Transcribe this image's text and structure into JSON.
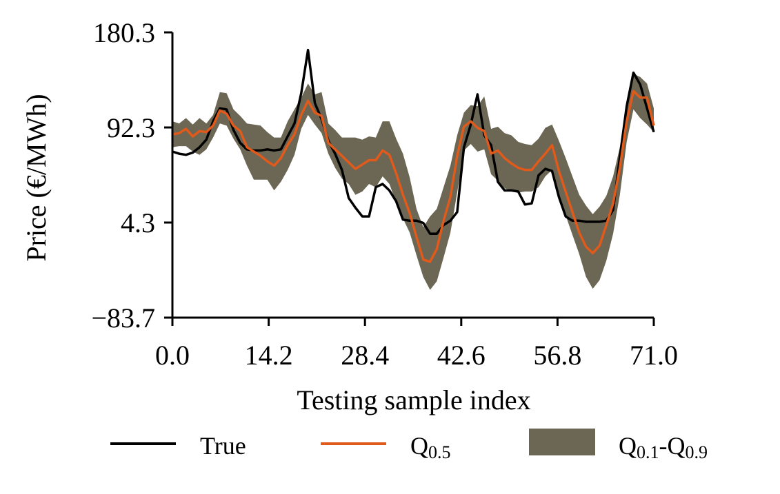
{
  "chart_data": {
    "type": "line",
    "xlabel": "Testing sample index",
    "ylabel": "Price (€/MWh)",
    "xlim": [
      0,
      71
    ],
    "ylim": [
      -83.7,
      180.3
    ],
    "xticks": [
      0,
      14.2,
      28.4,
      42.6,
      56.8,
      71
    ],
    "xtick_labels": [
      "0.0",
      "14.2",
      "28.4",
      "42.6",
      "56.8",
      "71.0"
    ],
    "yticks": [
      -83.7,
      4.3,
      92.3,
      180.3
    ],
    "ytick_labels": [
      "−83.7",
      "4.3",
      "92.3",
      "180.3"
    ],
    "legend": {
      "placement": "bottom-center",
      "true_label": "True",
      "median_label": "Q",
      "median_sub": "0.5",
      "band_label_a": "Q",
      "band_sub_a": "0.1",
      "band_dash": "-",
      "band_label_b": "Q",
      "band_sub_b": "0.9"
    },
    "colors": {
      "true": "#000000",
      "median": "#e05a1b",
      "band": "#6b6754"
    },
    "series": [
      {
        "name": "True",
        "x": [
          0,
          1,
          2,
          3,
          4,
          5,
          6,
          7,
          8,
          9,
          10,
          11,
          12,
          13,
          14,
          15,
          16,
          17,
          18,
          19,
          20,
          21,
          22,
          23,
          24,
          25,
          26,
          27,
          28,
          29,
          30,
          31,
          32,
          33,
          34,
          35,
          36,
          37,
          38,
          39,
          40,
          41,
          42,
          43,
          44,
          45,
          46,
          47,
          48,
          49,
          50,
          51,
          52,
          53,
          54,
          55,
          56,
          57,
          58,
          59,
          60,
          61,
          62,
          63,
          64,
          65,
          66,
          67,
          68,
          69,
          70,
          71
        ],
        "values": [
          70,
          68,
          67,
          69,
          74,
          81,
          98,
          110,
          109,
          90,
          78,
          72,
          71,
          71,
          72,
          71,
          72,
          84,
          96,
          124,
          164,
          115,
          100,
          80,
          68,
          53,
          27,
          18,
          10,
          10,
          37,
          40,
          34,
          24,
          7,
          6,
          6,
          4,
          -6,
          -6,
          2,
          6,
          14,
          74,
          95,
          123,
          85,
          76,
          42,
          34,
          34,
          33,
          21,
          22,
          48,
          54,
          52,
          28,
          10,
          6,
          6,
          5,
          5,
          5,
          6,
          16,
          65,
          112,
          143,
          132,
          110,
          88
        ]
      },
      {
        "name": "Q0.5",
        "x": [
          0,
          1,
          2,
          3,
          4,
          5,
          6,
          7,
          8,
          9,
          10,
          11,
          12,
          13,
          14,
          15,
          16,
          17,
          18,
          19,
          20,
          21,
          22,
          23,
          24,
          25,
          26,
          27,
          28,
          29,
          30,
          31,
          32,
          33,
          34,
          35,
          36,
          37,
          38,
          39,
          40,
          41,
          42,
          43,
          44,
          45,
          46,
          47,
          48,
          49,
          50,
          51,
          52,
          53,
          54,
          55,
          56,
          57,
          58,
          59,
          60,
          61,
          62,
          63,
          64,
          65,
          66,
          67,
          68,
          69,
          70,
          71
        ],
        "values": [
          86,
          87,
          91,
          84,
          89,
          88,
          94,
          108,
          105,
          94,
          89,
          74,
          70,
          66,
          61,
          57,
          64,
          76,
          86,
          104,
          117,
          106,
          103,
          78,
          72,
          66,
          60,
          54,
          58,
          62,
          62,
          71,
          67,
          50,
          30,
          13,
          -9,
          -30,
          -32,
          -20,
          6,
          28,
          66,
          93,
          98,
          92,
          89,
          68,
          71,
          64,
          59,
          55,
          53,
          53,
          61,
          68,
          76,
          52,
          33,
          14,
          -5,
          -18,
          -24,
          -17,
          2,
          22,
          55,
          98,
          126,
          120,
          120,
          94
        ]
      }
    ],
    "band": {
      "name": "Q0.1-Q0.9",
      "x": [
        0,
        1,
        2,
        3,
        4,
        5,
        6,
        7,
        8,
        9,
        10,
        11,
        12,
        13,
        14,
        15,
        16,
        17,
        18,
        19,
        20,
        21,
        22,
        23,
        24,
        25,
        26,
        27,
        28,
        29,
        30,
        31,
        32,
        33,
        34,
        35,
        36,
        37,
        38,
        39,
        40,
        41,
        42,
        43,
        44,
        45,
        46,
        47,
        48,
        49,
        50,
        51,
        52,
        53,
        54,
        55,
        56,
        57,
        58,
        59,
        60,
        61,
        62,
        63,
        64,
        65,
        66,
        67,
        68,
        69,
        70,
        71
      ],
      "lower": [
        74,
        75,
        75,
        70,
        67,
        72,
        83,
        96,
        94,
        82,
        72,
        57,
        44,
        44,
        44,
        34,
        42,
        53,
        67,
        91,
        104,
        95,
        87,
        68,
        55,
        45,
        40,
        30,
        33,
        40,
        37,
        47,
        40,
        23,
        8,
        -5,
        -26,
        -46,
        -58,
        -50,
        -28,
        -5,
        32,
        71,
        77,
        70,
        72,
        49,
        43,
        36,
        34,
        32,
        33,
        33,
        37,
        47,
        53,
        30,
        11,
        -7,
        -25,
        -46,
        -57,
        -49,
        -31,
        -6,
        30,
        79,
        109,
        101,
        95,
        88
      ],
      "upper": [
        98,
        96,
        101,
        95,
        101,
        96,
        104,
        125,
        124,
        109,
        103,
        96,
        95,
        94,
        88,
        83,
        83,
        98,
        109,
        120,
        133,
        123,
        125,
        96,
        90,
        83,
        83,
        83,
        81,
        84,
        83,
        98,
        98,
        82,
        68,
        46,
        17,
        0,
        10,
        17,
        37,
        57,
        85,
        106,
        113,
        112,
        121,
        91,
        93,
        87,
        85,
        79,
        77,
        76,
        82,
        92,
        95,
        80,
        64,
        47,
        30,
        20,
        12,
        19,
        29,
        47,
        74,
        111,
        142,
        139,
        133,
        110
      ]
    }
  }
}
